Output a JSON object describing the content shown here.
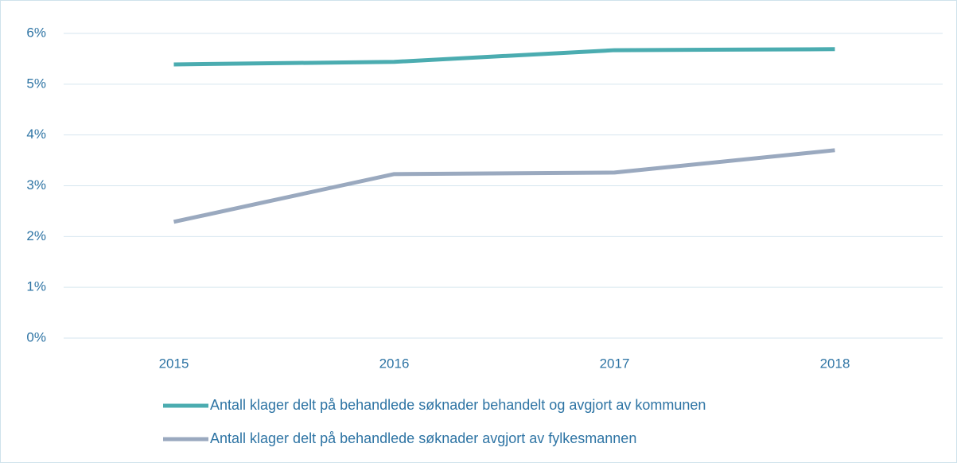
{
  "chart_data": {
    "type": "line",
    "categories": [
      "2015",
      "2016",
      "2017",
      "2018"
    ],
    "series": [
      {
        "name": "Antall klager delt på behandlede søknader behandelt og avgjort av kommunen",
        "color": "#4bacb0",
        "values": [
          5.39,
          5.44,
          5.67,
          5.69
        ]
      },
      {
        "name": "Antall klager delt på behandlede søknader avgjort av fylkesmannen",
        "color": "#9aa9bf",
        "values": [
          2.29,
          3.23,
          3.26,
          3.7
        ]
      }
    ],
    "ylim": [
      0,
      6
    ],
    "yticks": [
      {
        "value": 0,
        "label": "0%"
      },
      {
        "value": 1,
        "label": "1%"
      },
      {
        "value": 2,
        "label": "2%"
      },
      {
        "value": 3,
        "label": "3%"
      },
      {
        "value": 4,
        "label": "4%"
      },
      {
        "value": 5,
        "label": "5%"
      },
      {
        "value": 6,
        "label": "6%"
      }
    ],
    "grid": true,
    "legend": "bottom"
  }
}
